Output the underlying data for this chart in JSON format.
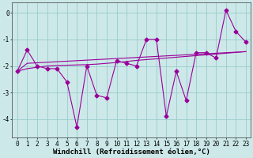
{
  "x": [
    0,
    1,
    2,
    3,
    4,
    5,
    6,
    7,
    8,
    9,
    10,
    11,
    12,
    13,
    14,
    15,
    16,
    17,
    18,
    19,
    20,
    21,
    22,
    23
  ],
  "y_main": [
    -2.2,
    -1.4,
    -2.0,
    -2.1,
    -2.1,
    -2.6,
    -4.3,
    -2.0,
    -3.1,
    -3.2,
    -1.8,
    -1.9,
    -2.0,
    -1.0,
    -1.0,
    -3.9,
    -2.2,
    -3.3,
    -1.5,
    -1.5,
    -1.7,
    0.1,
    -0.7,
    -1.1
  ],
  "y_reg1": [
    -2.2,
    -1.9,
    -1.88,
    -1.86,
    -1.84,
    -1.82,
    -1.8,
    -1.78,
    -1.76,
    -1.74,
    -1.72,
    -1.7,
    -1.68,
    -1.66,
    -1.64,
    -1.62,
    -1.6,
    -1.58,
    -1.56,
    -1.54,
    -1.52,
    -1.5,
    -1.48,
    -1.46
  ],
  "y_reg2": [
    -2.2,
    -2.1,
    -2.05,
    -2.0,
    -1.98,
    -1.97,
    -1.96,
    -1.95,
    -1.93,
    -1.9,
    -1.87,
    -1.83,
    -1.79,
    -1.76,
    -1.73,
    -1.7,
    -1.67,
    -1.64,
    -1.61,
    -1.58,
    -1.55,
    -1.52,
    -1.49,
    -1.46
  ],
  "line_color": "#990099",
  "bg_color": "#cce8e8",
  "grid_color": "#99cccc",
  "marker": "D",
  "markersize": 2.5,
  "linewidth": 0.8,
  "xlabel": "Windchill (Refroidissement éolien,°C)",
  "ylim": [
    -4.7,
    0.4
  ],
  "xlim": [
    -0.5,
    23.5
  ],
  "yticks": [
    0,
    -1,
    -2,
    -3,
    -4
  ],
  "xticks": [
    0,
    1,
    2,
    3,
    4,
    5,
    6,
    7,
    8,
    9,
    10,
    11,
    12,
    13,
    14,
    15,
    16,
    17,
    18,
    19,
    20,
    21,
    22,
    23
  ],
  "xlabel_fontsize": 6.5,
  "tick_fontsize": 5.5,
  "fig_width": 3.2,
  "fig_height": 2.0
}
